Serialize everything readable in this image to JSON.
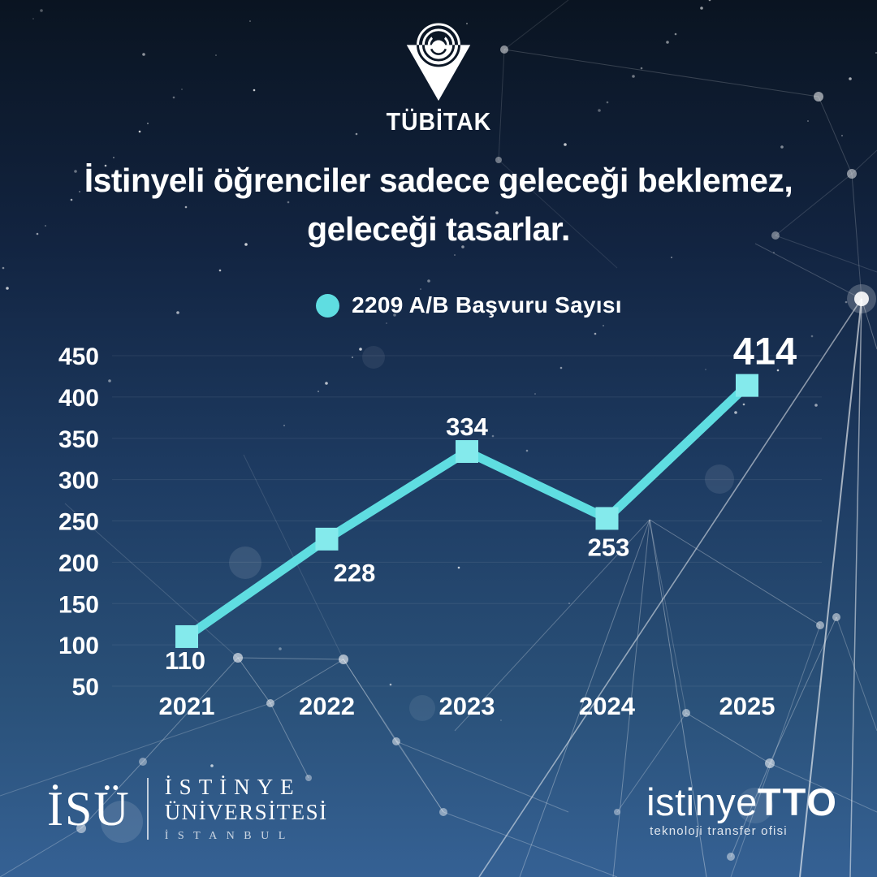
{
  "header": {
    "logo_label": "TÜBİTAK"
  },
  "headline": {
    "line1": "İstinyeli öğrenciler sadece geleceği beklemez,",
    "line2": "geleceği tasarlar."
  },
  "legend": {
    "label": "2209 A/B Başvuru Sayısı",
    "dot_color": "#5fdde1"
  },
  "chart_data": {
    "type": "line",
    "title": "2209 A/B Başvuru Sayısı",
    "categories": [
      "2021",
      "2022",
      "2023",
      "2024",
      "2025"
    ],
    "series": [
      {
        "name": "2209 A/B Başvuru Sayısı",
        "values": [
          110,
          228,
          334,
          253,
          414
        ]
      }
    ],
    "yticks": [
      450,
      400,
      350,
      300,
      250,
      200,
      150,
      100,
      50
    ],
    "ylim": [
      50,
      450
    ],
    "xlabel": "",
    "ylabel": "",
    "grid": true,
    "legend_position": "top-center",
    "line_color": "#5fdde1",
    "marker": "square",
    "marker_color": "#84eaec",
    "label_color": "#ffffff",
    "background": "dark-blue-network"
  },
  "footer": {
    "isu": {
      "abbr": "İSÜ",
      "line1": "İSTİNYE",
      "line2": "ÜNİVERSİTESİ",
      "city": "İSTANBUL"
    },
    "tto": {
      "brand_light": "istinye",
      "brand_bold": "TTO",
      "tagline": "teknoloji transfer ofisi"
    }
  },
  "colors": {
    "bg_top": "#0a1421",
    "bg_bottom": "#356194",
    "accent_teal": "#5fdde1",
    "text": "#ffffff"
  }
}
